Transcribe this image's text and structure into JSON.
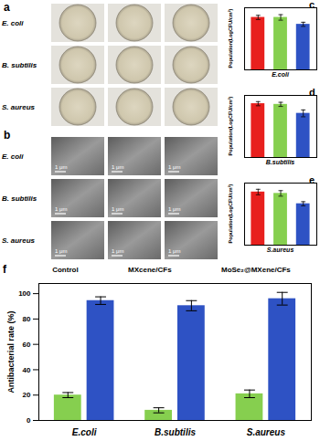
{
  "figure": {
    "photo_panels": [
      {
        "letter": "a",
        "rows": [
          "E. coli",
          "B. subtilis",
          "S. aureus"
        ]
      },
      {
        "letter": "b",
        "rows": [
          "E. coli",
          "B. subtilis",
          "S. aureus"
        ],
        "scale_bar": "1 μm"
      }
    ],
    "chart_letters": [
      "c",
      "d",
      "e",
      "f"
    ]
  },
  "chart_data": [
    {
      "type": "bar",
      "x_label": "E.coli",
      "y_label": "Population(LogCFU/cm²)",
      "categories": [
        null,
        null,
        null
      ],
      "values": [
        7.6,
        7.6,
        6.6
      ],
      "errors": [
        0.3,
        0.4,
        0.3
      ],
      "colors": [
        "#e8201e",
        "#86cf4f",
        "#2e52c4"
      ],
      "ylim": [
        0,
        9
      ],
      "tick_labels": false
    },
    {
      "type": "bar",
      "x_label": "B.subtilis",
      "y_label": "Population(LogCFU/cm²)",
      "categories": [
        null,
        null,
        null
      ],
      "values": [
        7.8,
        7.7,
        6.4
      ],
      "errors": [
        0.3,
        0.3,
        0.5
      ],
      "colors": [
        "#e8201e",
        "#86cf4f",
        "#2e52c4"
      ],
      "ylim": [
        0,
        9
      ],
      "tick_labels": false
    },
    {
      "type": "bar",
      "x_label": "S.aureus",
      "y_label": "Population(LogCFU/cm²)",
      "categories": [
        null,
        null,
        null
      ],
      "values": [
        7.7,
        7.5,
        6.0
      ],
      "errors": [
        0.4,
        0.4,
        0.3
      ],
      "colors": [
        "#e8201e",
        "#86cf4f",
        "#2e52c4"
      ],
      "ylim": [
        0,
        9
      ],
      "tick_labels": false
    },
    {
      "type": "bar",
      "y_label": "Antibacterial rate (%)",
      "categories": [
        "E.coli",
        "B.subtilis",
        "S.aureus"
      ],
      "series": [
        {
          "name": "Control",
          "color": "#e8201e",
          "values": [
            null,
            null,
            null
          ]
        },
        {
          "name": "MXcene/CFs",
          "color": "#86cf4f",
          "values": [
            20,
            8,
            21
          ],
          "errors": [
            2,
            2,
            3
          ]
        },
        {
          "name": "MoSe₂@MXene/CFs",
          "color": "#2e52c4",
          "values": [
            94.5,
            90.5,
            96
          ],
          "errors": [
            3,
            4,
            5
          ]
        }
      ],
      "ylim": [
        0,
        108
      ],
      "yticks": [
        0,
        20,
        40,
        60,
        80,
        100
      ],
      "legend": "top"
    }
  ]
}
